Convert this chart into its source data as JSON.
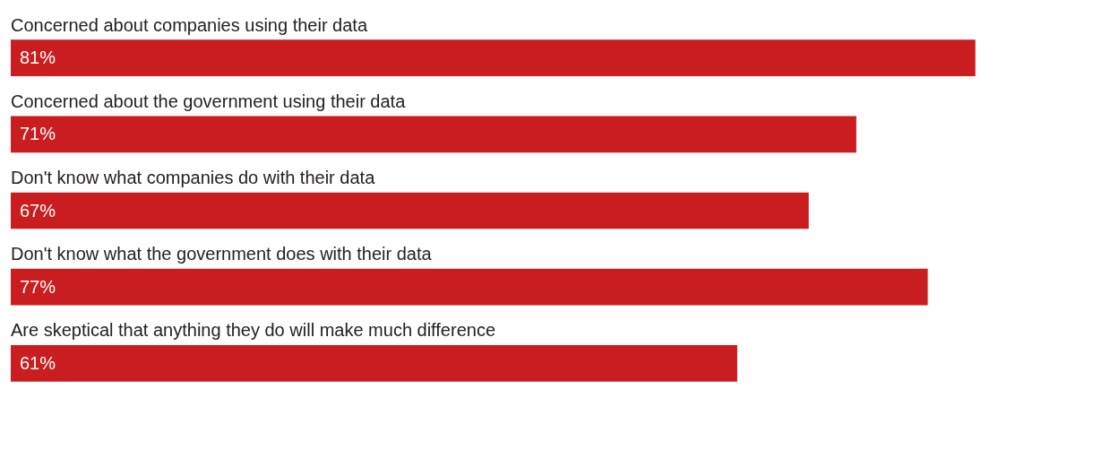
{
  "chart_data": {
    "type": "bar",
    "orientation": "horizontal",
    "categories": [
      "Concerned about companies using their data",
      "Concerned about the government using their data",
      "Don't know what companies do with their data",
      "Don't know what the government does with their data",
      "Are skeptical that anything they do will make much difference"
    ],
    "values": [
      81,
      71,
      67,
      77,
      61
    ],
    "value_labels": [
      "81%",
      "71%",
      "67%",
      "77%",
      "61%"
    ],
    "color": "#c91d1f"
  }
}
